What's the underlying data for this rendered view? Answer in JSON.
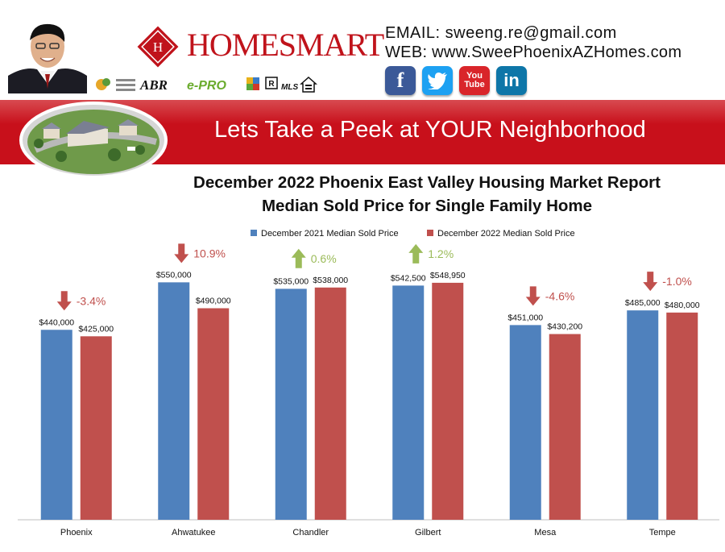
{
  "header": {
    "brand": "HOMESMART",
    "email_line": "EMAIL: sweeng.re@gmail.com",
    "web_line": "WEB: www.SweePhoenixAZHomes.com",
    "badge_abr": "ABR",
    "badge_epro": "e-PRO",
    "badge_mls": "MLS",
    "social": [
      {
        "name": "facebook",
        "label": "f",
        "color": "#3b5998"
      },
      {
        "name": "twitter",
        "label": "t",
        "color": "#1da1f2"
      },
      {
        "name": "youtube",
        "label": "You Tube",
        "color": "#d9252a"
      },
      {
        "name": "linkedin",
        "label": "in",
        "color": "#0e76a8"
      }
    ]
  },
  "banner": {
    "title": "Lets Take a Peek at YOUR Neighborhood"
  },
  "colors": {
    "series_2021": "#4f81bd",
    "series_2022": "#c0504d",
    "up_arrow": "#9bbb59",
    "down_arrow": "#c0504d"
  },
  "chart_data": {
    "type": "bar",
    "title": "December 2022 Phoenix East Valley Housing Market Report",
    "subtitle": "Median Sold Price for Single Family Home",
    "categories": [
      "Phoenix",
      "Ahwatukee",
      "Chandler",
      "Gilbert",
      "Mesa",
      "Tempe"
    ],
    "series": [
      {
        "name": "December 2021 Median Sold Price",
        "values": [
          440000,
          550000,
          535000,
          542500,
          451000,
          485000
        ],
        "labels": [
          "$440,000",
          "$550,000",
          "$535,000",
          "$542,500",
          "$451,000",
          "$485,000"
        ]
      },
      {
        "name": "December 2022 Median Sold Price",
        "values": [
          425000,
          490000,
          538000,
          548950,
          430200,
          480000
        ],
        "labels": [
          "$425,000",
          "$490,000",
          "$538,000",
          "$548,950",
          "$430,200",
          "$480,000"
        ]
      }
    ],
    "changes": [
      {
        "label": "-3.4%",
        "direction": "down"
      },
      {
        "label": "10.9%",
        "direction": "down"
      },
      {
        "label": "0.6%",
        "direction": "up"
      },
      {
        "label": "1.2%",
        "direction": "up"
      },
      {
        "label": "-4.6%",
        "direction": "down"
      },
      {
        "label": "-1.0%",
        "direction": "up_down_mix_placeholder"
      }
    ],
    "ylim": [
      0,
      700000
    ],
    "legend_position": "top",
    "grid": false
  }
}
